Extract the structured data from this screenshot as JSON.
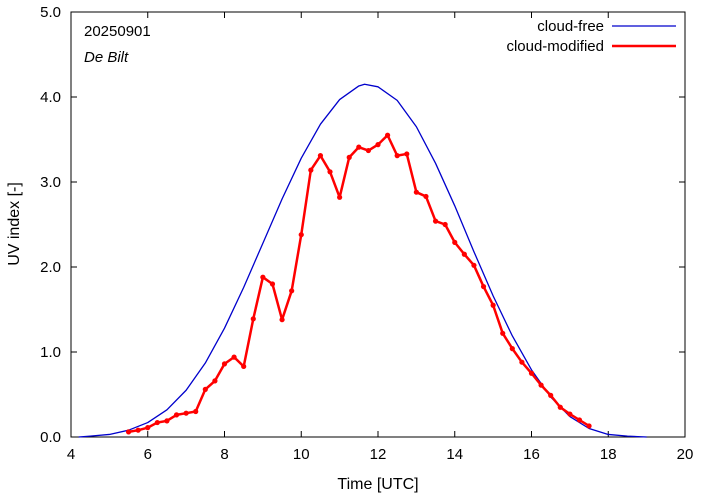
{
  "chart_data": {
    "type": "line",
    "xlabel": "Time  [UTC]",
    "ylabel": "UV index  [-]",
    "xlim": [
      4,
      20
    ],
    "ylim": [
      0.0,
      5.0
    ],
    "xticks": [
      4,
      6,
      8,
      10,
      12,
      14,
      16,
      18,
      20
    ],
    "xtick_labels": [
      "4",
      "6",
      "8",
      "10",
      "12",
      "14",
      "16",
      "18",
      "20"
    ],
    "yticks": [
      0.0,
      1.0,
      2.0,
      3.0,
      4.0,
      5.0
    ],
    "ytick_labels": [
      "0.0",
      "1.0",
      "2.0",
      "3.0",
      "4.0",
      "5.0"
    ],
    "annotations": [
      "20250901",
      "De Bilt"
    ],
    "legend_position": "top-right",
    "series": [
      {
        "name": "cloud-free",
        "color": "#0000cc",
        "style": "line",
        "x": [
          4.2,
          4.5,
          5.0,
          5.5,
          6.0,
          6.5,
          7.0,
          7.5,
          8.0,
          8.5,
          9.0,
          9.5,
          10.0,
          10.5,
          11.0,
          11.5,
          11.65,
          12.0,
          12.5,
          13.0,
          13.5,
          14.0,
          14.5,
          15.0,
          15.5,
          16.0,
          16.5,
          17.0,
          17.5,
          18.0,
          18.5,
          19.0
        ],
        "y": [
          0.0,
          0.01,
          0.03,
          0.08,
          0.17,
          0.32,
          0.55,
          0.87,
          1.28,
          1.76,
          2.28,
          2.8,
          3.28,
          3.68,
          3.97,
          4.13,
          4.15,
          4.12,
          3.96,
          3.65,
          3.22,
          2.72,
          2.18,
          1.66,
          1.19,
          0.79,
          0.47,
          0.24,
          0.1,
          0.03,
          0.01,
          0.0
        ]
      },
      {
        "name": "cloud-modified",
        "color": "#ff0000",
        "style": "line-points",
        "x": [
          5.5,
          5.75,
          6.0,
          6.25,
          6.5,
          6.75,
          7.0,
          7.25,
          7.5,
          7.75,
          8.0,
          8.25,
          8.5,
          8.75,
          9.0,
          9.25,
          9.5,
          9.75,
          10.0,
          10.25,
          10.5,
          10.75,
          11.0,
          11.25,
          11.5,
          11.75,
          12.0,
          12.25,
          12.5,
          12.75,
          13.0,
          13.25,
          13.5,
          13.75,
          14.0,
          14.25,
          14.5,
          14.75,
          15.0,
          15.25,
          15.5,
          15.75,
          16.0,
          16.25,
          16.5,
          16.75,
          17.0,
          17.25,
          17.5
        ],
        "y": [
          0.06,
          0.08,
          0.11,
          0.17,
          0.19,
          0.26,
          0.28,
          0.3,
          0.56,
          0.66,
          0.86,
          0.94,
          0.83,
          1.39,
          1.88,
          1.8,
          1.38,
          1.72,
          2.38,
          3.14,
          3.31,
          3.12,
          2.82,
          3.29,
          3.41,
          3.37,
          3.44,
          3.55,
          3.31,
          3.33,
          2.88,
          2.83,
          2.54,
          2.5,
          2.29,
          2.15,
          2.02,
          1.77,
          1.55,
          1.22,
          1.04,
          0.88,
          0.75,
          0.61,
          0.49,
          0.35,
          0.27,
          0.2,
          0.13
        ]
      }
    ]
  }
}
